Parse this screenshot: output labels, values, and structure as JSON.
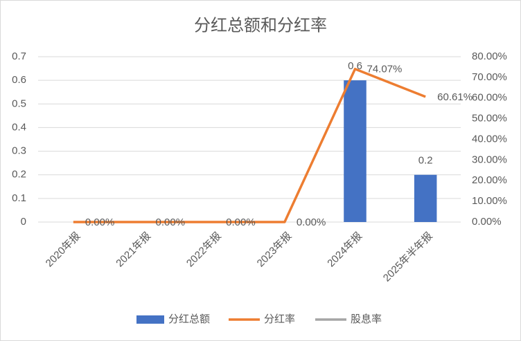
{
  "chart_data": {
    "type": "bar-line",
    "title": "分红总额和分红率",
    "categories": [
      "2020年报",
      "2021年报",
      "2022年报",
      "2023年报",
      "2024年报",
      "2025年半年报"
    ],
    "series": [
      {
        "name": "分红总额",
        "type": "bar",
        "color": "#4472c4",
        "values": [
          null,
          null,
          null,
          null,
          0.6,
          0.2
        ]
      },
      {
        "name": "分红率",
        "type": "line",
        "axis": "y2",
        "color": "#ed7d31",
        "values": [
          0,
          0,
          0,
          0,
          74.07,
          60.61
        ],
        "value_labels": [
          "0.00%",
          "0.00%",
          "0.00%",
          "0.00%",
          "74.07%",
          "60.61%"
        ]
      },
      {
        "name": "股息率",
        "type": "line",
        "axis": "y2",
        "color": "#a5a5a5",
        "values": [
          null,
          null,
          null,
          null,
          null,
          null
        ]
      }
    ],
    "ylim": [
      0,
      0.7
    ],
    "yticks": [
      0,
      0.1,
      0.2,
      0.3,
      0.4,
      0.5,
      0.6,
      0.7
    ],
    "y2lim": [
      0,
      80
    ],
    "y2ticks": [
      {
        "value": 0,
        "label": "0.00%"
      },
      {
        "value": 10,
        "label": "10.00%"
      },
      {
        "value": 20,
        "label": "20.00%"
      },
      {
        "value": 30,
        "label": "30.00%"
      },
      {
        "value": 40,
        "label": "40.00%"
      },
      {
        "value": 50,
        "label": "50.00%"
      },
      {
        "value": 60,
        "label": "60.00%"
      },
      {
        "value": 70,
        "label": "70.00%"
      },
      {
        "value": 80,
        "label": "80.00%"
      }
    ],
    "grid": true,
    "legend": "bottom"
  }
}
